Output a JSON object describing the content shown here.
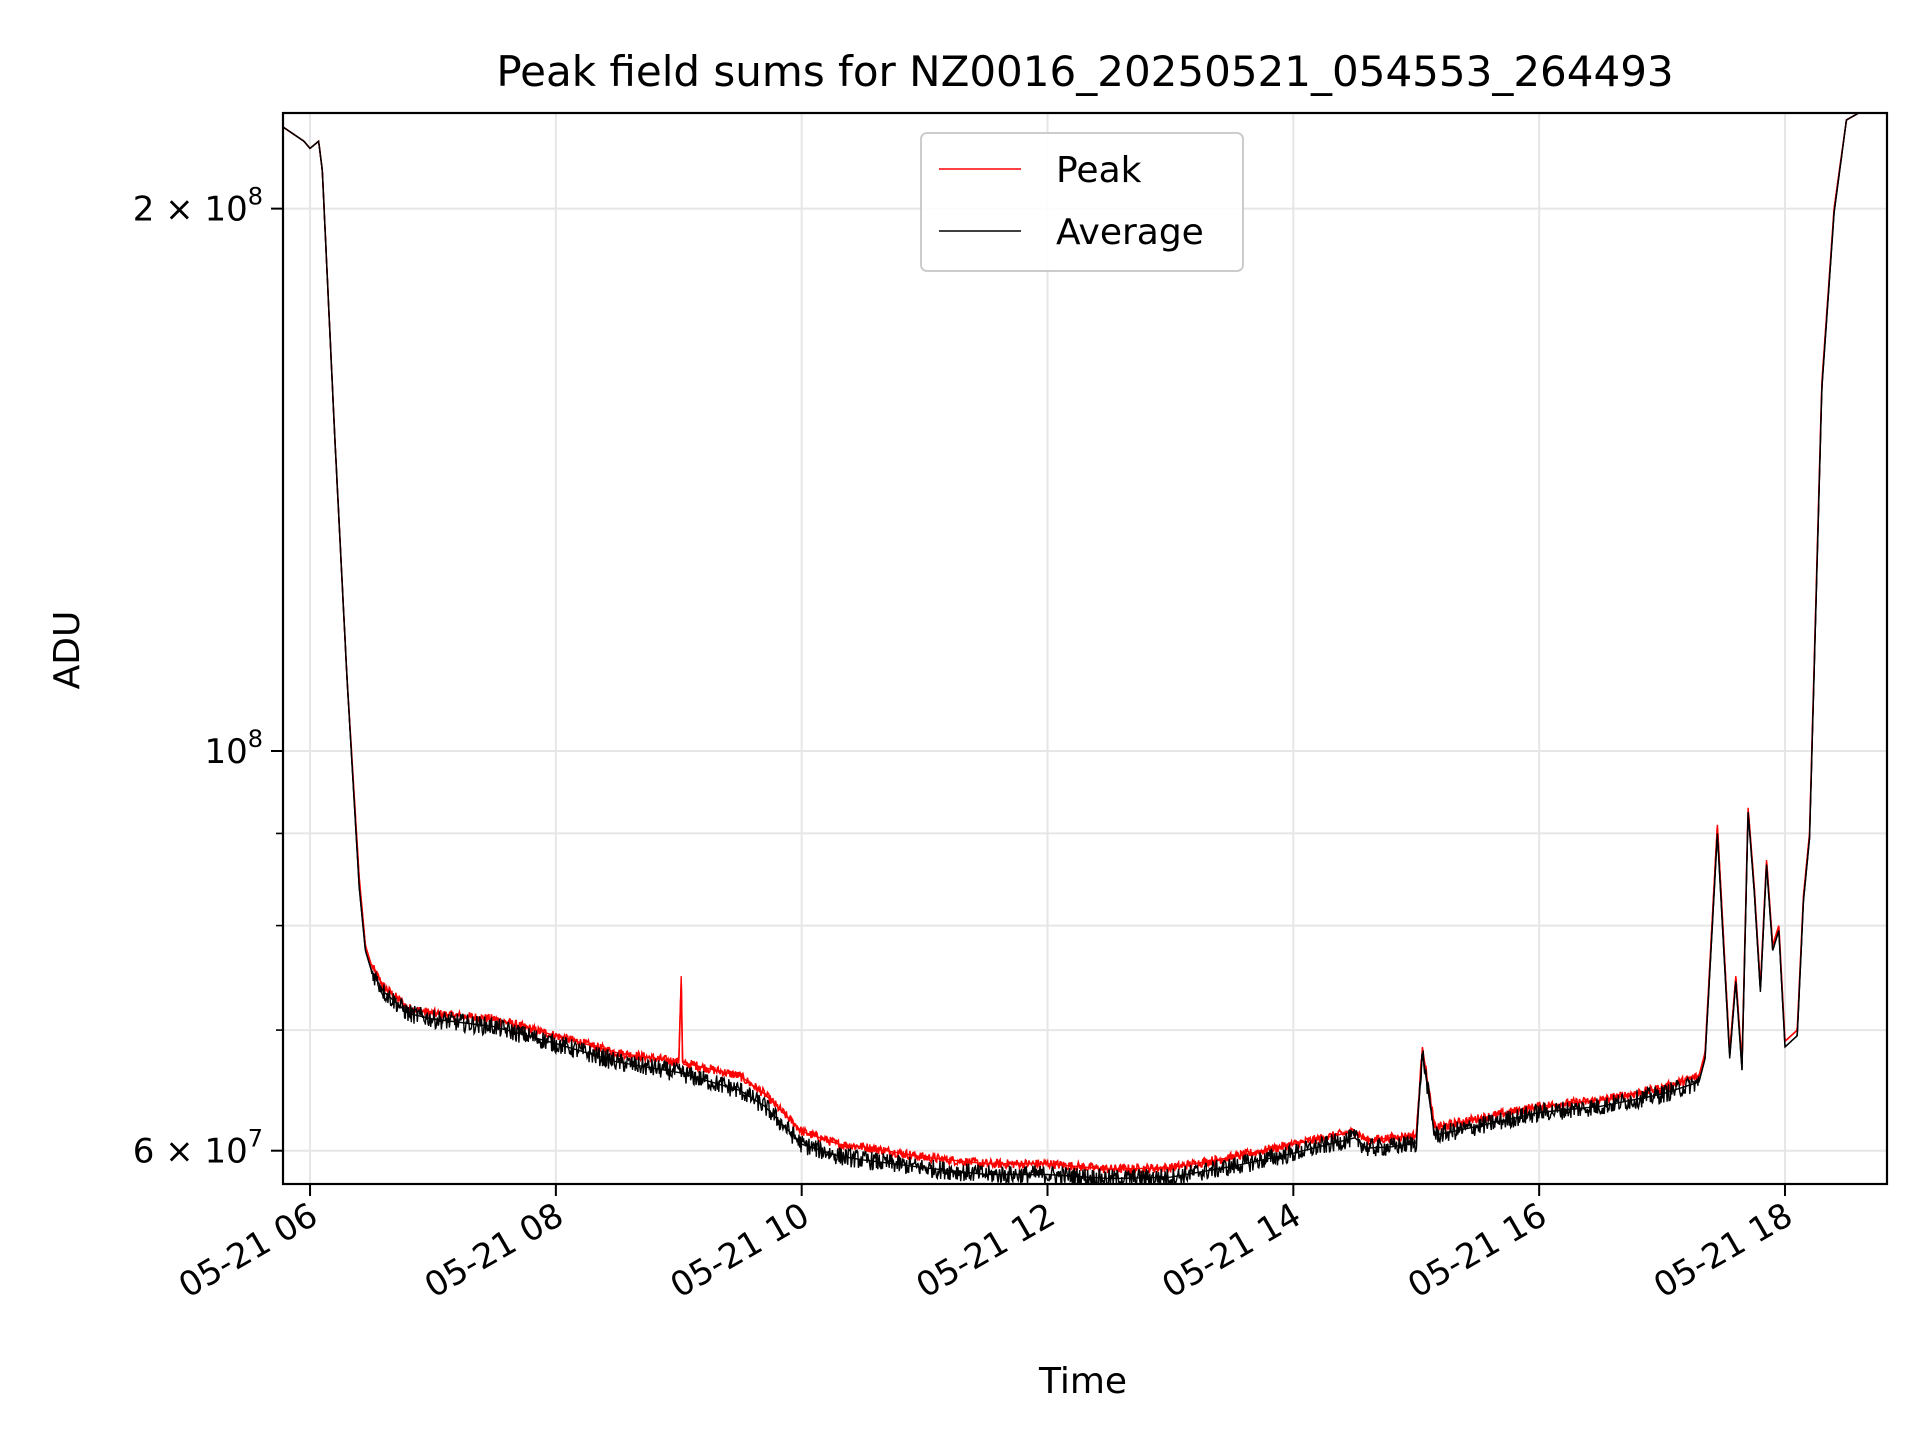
{
  "chart_data": {
    "type": "line",
    "title": "Peak field sums for NZ0016_20250521_054553_264493",
    "xlabel": "Time",
    "ylabel": "ADU",
    "x_axis": {
      "unit": "hours on 2025-05-21",
      "range": [
        5.78,
        18.83
      ],
      "ticks": [
        {
          "value": 6,
          "label": "05-21 06"
        },
        {
          "value": 8,
          "label": "05-21 08"
        },
        {
          "value": 10,
          "label": "05-21 10"
        },
        {
          "value": 12,
          "label": "05-21 12"
        },
        {
          "value": 14,
          "label": "05-21 14"
        },
        {
          "value": 16,
          "label": "05-21 16"
        },
        {
          "value": 18,
          "label": "05-21 18"
        }
      ]
    },
    "y_axis": {
      "scale": "log",
      "range": [
        57500000,
        226000000
      ],
      "major_ticks": [
        {
          "value": 60000000,
          "base": "6 × 10",
          "exp": "7"
        },
        {
          "value": 100000000,
          "base": "10",
          "exp": "8"
        },
        {
          "value": 200000000,
          "base": "2 × 10",
          "exp": "8"
        }
      ],
      "minor_gridlines": [
        70000000,
        80000000,
        90000000
      ]
    },
    "grid": true,
    "legend": {
      "placement": "upper center",
      "entries": [
        "Peak",
        "Average"
      ]
    },
    "series": [
      {
        "name": "Peak",
        "color": "#ff0000",
        "x": [
          5.78,
          5.95,
          6.0,
          6.07,
          6.1,
          6.2,
          6.3,
          6.4,
          6.45,
          6.5,
          6.6,
          6.8,
          7.0,
          7.5,
          8.0,
          8.5,
          9.0,
          9.02,
          9.03,
          9.04,
          9.1,
          9.5,
          9.7,
          10.0,
          10.3,
          10.5,
          11.0,
          11.5,
          12.0,
          12.5,
          13.0,
          13.5,
          14.0,
          14.5,
          14.6,
          14.8,
          15.0,
          15.05,
          15.1,
          15.15,
          15.5,
          16.0,
          16.5,
          17.0,
          17.3,
          17.35,
          17.45,
          17.55,
          17.6,
          17.65,
          17.7,
          17.75,
          17.8,
          17.85,
          17.9,
          17.95,
          18.0,
          18.05,
          18.1,
          18.15,
          18.2,
          18.25,
          18.3,
          18.4,
          18.5,
          18.6,
          18.7,
          18.83
        ],
        "y": [
          222000000,
          218000000,
          216000000,
          218000000,
          210000000,
          150000000,
          110000000,
          85000000,
          78000000,
          76000000,
          74000000,
          72000000,
          71500000,
          71000000,
          69500000,
          68000000,
          67200000,
          75000000,
          67200000,
          67000000,
          67000000,
          66000000,
          64500000,
          61500000,
          60500000,
          60300000,
          59500000,
          59000000,
          59000000,
          58600000,
          58700000,
          59500000,
          60500000,
          61500000,
          60800000,
          61000000,
          61200000,
          68500000,
          65000000,
          61800000,
          62500000,
          63500000,
          64000000,
          65000000,
          66000000,
          68000000,
          91000000,
          68000000,
          75000000,
          67000000,
          93000000,
          84000000,
          74000000,
          87000000,
          78000000,
          80000000,
          69000000,
          69500000,
          70000000,
          83000000,
          90000000,
          120000000,
          160000000,
          200000000,
          224000000,
          226000000,
          226000000,
          226000000
        ]
      },
      {
        "name": "Average",
        "color": "#000000",
        "x": [
          5.78,
          5.95,
          6.0,
          6.07,
          6.1,
          6.2,
          6.3,
          6.4,
          6.45,
          6.5,
          6.6,
          6.8,
          7.0,
          7.5,
          8.0,
          8.5,
          9.0,
          9.1,
          9.5,
          9.7,
          10.0,
          10.3,
          10.5,
          11.0,
          11.5,
          12.0,
          12.5,
          13.0,
          13.5,
          14.0,
          14.5,
          14.6,
          14.8,
          15.0,
          15.05,
          15.1,
          15.15,
          15.5,
          16.0,
          16.5,
          17.0,
          17.3,
          17.35,
          17.45,
          17.55,
          17.6,
          17.65,
          17.7,
          17.75,
          17.8,
          17.85,
          17.9,
          17.95,
          18.0,
          18.05,
          18.1,
          18.15,
          18.2,
          18.25,
          18.3,
          18.4,
          18.5,
          18.6,
          18.7,
          18.83
        ],
        "y": [
          222000000,
          218000000,
          216000000,
          218000000,
          210000000,
          150000000,
          110000000,
          84000000,
          77500000,
          75500000,
          73500000,
          71500000,
          71000000,
          70300000,
          68800000,
          67200000,
          66300000,
          66000000,
          64800000,
          63500000,
          60500000,
          59600000,
          59300000,
          58700000,
          58200000,
          58200000,
          57900000,
          58000000,
          58800000,
          59800000,
          61000000,
          60200000,
          60300000,
          60600000,
          68000000,
          64500000,
          61200000,
          61900000,
          63000000,
          63500000,
          64500000,
          65500000,
          67500000,
          90000000,
          67500000,
          74500000,
          66500000,
          92500000,
          83500000,
          73500000,
          86500000,
          77500000,
          79500000,
          68500000,
          69000000,
          69500000,
          82500000,
          89500000,
          119000000,
          159000000,
          199000000,
          224000000,
          226000000,
          226000000,
          226000000
        ]
      }
    ]
  }
}
